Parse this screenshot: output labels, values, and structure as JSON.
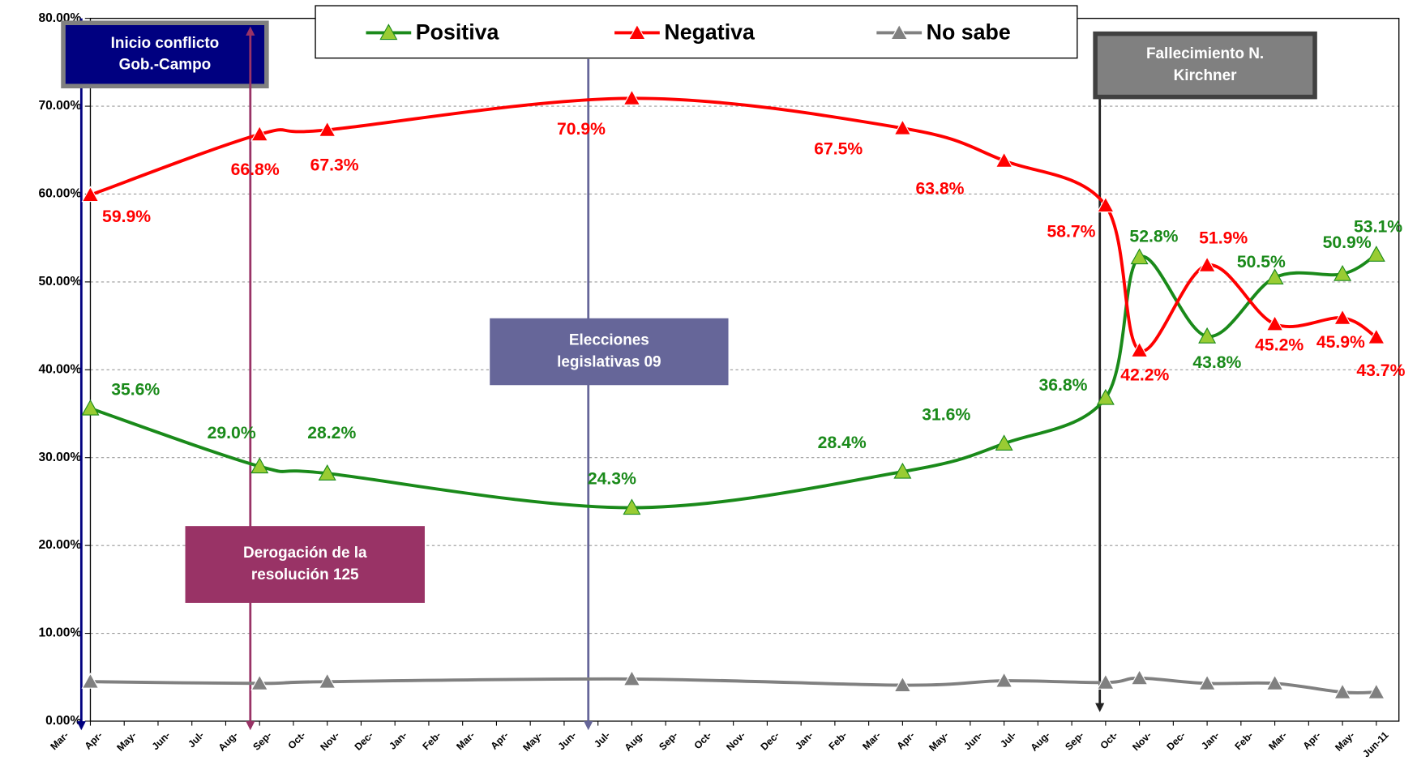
{
  "chart_data": {
    "type": "line",
    "categories": [
      "Mar-",
      "Apr-",
      "May-",
      "Jun-",
      "Jul-",
      "Aug-",
      "Sep-",
      "Oct-",
      "Nov-",
      "Dec-",
      "Jan-",
      "Feb-",
      "Mar-",
      "Apr-",
      "May-",
      "Jun-",
      "Jul-",
      "Aug-",
      "Sep-",
      "Oct-",
      "Nov-",
      "Dec-",
      "Jan-",
      "Feb-",
      "Mar-",
      "Apr-",
      "May-",
      "Jun-",
      "Jul-",
      "Aug-",
      "Sep-",
      "Oct-",
      "Nov-",
      "Dec-",
      "Jan-",
      "Feb-",
      "Mar-",
      "Apr-",
      "May-",
      "Jun-11"
    ],
    "series": [
      {
        "name": "Positiva",
        "color": "#1a8a1a",
        "marker_color": "#99cc33",
        "values": [
          null,
          35.6,
          null,
          null,
          null,
          null,
          29.0,
          null,
          28.2,
          null,
          null,
          null,
          null,
          null,
          null,
          null,
          null,
          24.3,
          null,
          null,
          null,
          null,
          null,
          null,
          null,
          28.4,
          null,
          null,
          31.6,
          null,
          null,
          36.8,
          52.8,
          null,
          43.8,
          null,
          50.5,
          null,
          50.9,
          53.1
        ],
        "value_labels": [
          null,
          "35.6%",
          null,
          null,
          null,
          null,
          "29.0%",
          null,
          "28.2%",
          null,
          null,
          null,
          null,
          null,
          null,
          null,
          null,
          "24.3%",
          null,
          null,
          null,
          null,
          null,
          null,
          null,
          "28.4%",
          null,
          null,
          "31.6%",
          null,
          null,
          "36.8%",
          "52.8%",
          null,
          "43.8%",
          null,
          "50.5%",
          null,
          "50.9%",
          "53.1%"
        ]
      },
      {
        "name": "Negativa",
        "color": "#ff0000",
        "marker_color": "#ff0000",
        "values": [
          null,
          59.9,
          null,
          null,
          null,
          null,
          66.8,
          null,
          67.3,
          null,
          null,
          null,
          null,
          null,
          null,
          null,
          null,
          70.9,
          null,
          null,
          null,
          null,
          null,
          null,
          null,
          67.5,
          null,
          null,
          63.8,
          null,
          null,
          58.7,
          42.2,
          null,
          51.9,
          null,
          45.2,
          null,
          45.9,
          43.7
        ],
        "value_labels": [
          null,
          "59.9%",
          null,
          null,
          null,
          null,
          "66.8%",
          null,
          "67.3%",
          null,
          null,
          null,
          null,
          null,
          null,
          null,
          null,
          "70.9%",
          null,
          null,
          null,
          null,
          null,
          null,
          null,
          "67.5%",
          null,
          null,
          "63.8%",
          null,
          null,
          "58.7%",
          "42.2%",
          null,
          "51.9%",
          null,
          "45.2%",
          null,
          "45.9%",
          "43.7%"
        ]
      },
      {
        "name": "No sabe",
        "color": "#808080",
        "marker_color": "#808080",
        "values": [
          null,
          4.5,
          null,
          null,
          null,
          null,
          4.3,
          null,
          4.5,
          null,
          null,
          null,
          null,
          null,
          null,
          null,
          null,
          4.8,
          null,
          null,
          null,
          null,
          null,
          null,
          null,
          4.1,
          null,
          null,
          4.6,
          null,
          null,
          4.4,
          4.9,
          null,
          4.3,
          null,
          4.3,
          null,
          3.3,
          3.3
        ]
      }
    ],
    "connect_gaps": true,
    "ylim": [
      0,
      80
    ],
    "yticks": [
      {
        "value": 0,
        "label": "0.00%"
      },
      {
        "value": 10,
        "label": "10.00%"
      },
      {
        "value": 20,
        "label": "20.00%"
      },
      {
        "value": 30,
        "label": "30.00%"
      },
      {
        "value": 40,
        "label": "40.00%"
      },
      {
        "value": 50,
        "label": "50.00%"
      },
      {
        "value": 60,
        "label": "60.00%"
      },
      {
        "value": 70,
        "label": "70.00%"
      },
      {
        "value": 80,
        "label": "80.00%"
      }
    ],
    "grid": true,
    "legend": "top",
    "annotations": [
      {
        "lines": [
          "Inicio conflicto",
          "Gob.-Campo"
        ],
        "color": "#000080"
      },
      {
        "lines": [
          "Derogación de la",
          "resolución 125"
        ],
        "color": "#993366"
      },
      {
        "lines": [
          "Elecciones",
          "legislativas 09"
        ],
        "color": "#666699"
      },
      {
        "lines": [
          "Fallecimiento N.",
          "Kirchner"
        ],
        "color": "#808080"
      }
    ]
  }
}
